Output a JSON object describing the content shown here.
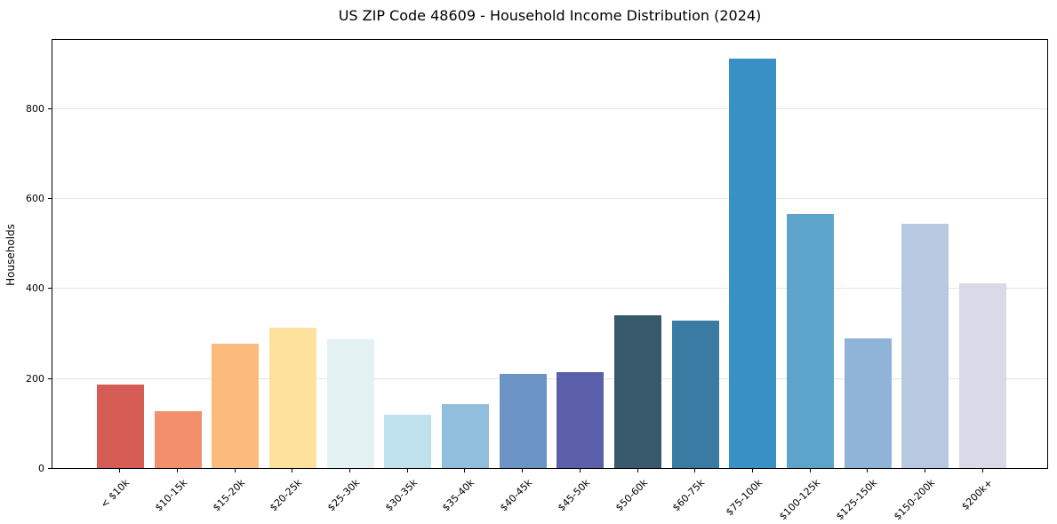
{
  "chart_data": {
    "type": "bar",
    "title": "US ZIP Code 48609 - Household Income Distribution (2024)",
    "xlabel": "",
    "ylabel": "Households",
    "categories": [
      "< $10k",
      "$10-15k",
      "$15-20k",
      "$20-25k",
      "$25-30k",
      "$30-35k",
      "$35-40k",
      "$40-45k",
      "$45-50k",
      "$50-60k",
      "$60-75k",
      "$75-100k",
      "$100-125k",
      "$125-150k",
      "$150-200k",
      "$200k+"
    ],
    "values": [
      185,
      126,
      277,
      312,
      286,
      118,
      143,
      209,
      214,
      339,
      328,
      909,
      564,
      288,
      542,
      410
    ],
    "bar_colors": [
      "#d65d55",
      "#f2906d",
      "#fbbb7c",
      "#fde29e",
      "#e4f1f2",
      "#bfe0ed",
      "#92bedd",
      "#6b93c4",
      "#5b5fa9",
      "#37596b",
      "#3a7ba3",
      "#3990c4",
      "#5ca4c9",
      "#90b4d8",
      "#b9c8e1",
      "#d8dae8"
    ],
    "ylim": [
      0,
      955
    ],
    "yticks": [
      0,
      200,
      400,
      600,
      800
    ],
    "grid": "horizontal",
    "gridline_color": "#e6e6e6",
    "legend": "none",
    "background_color": "#ffffff",
    "spine_color": "#000000"
  }
}
